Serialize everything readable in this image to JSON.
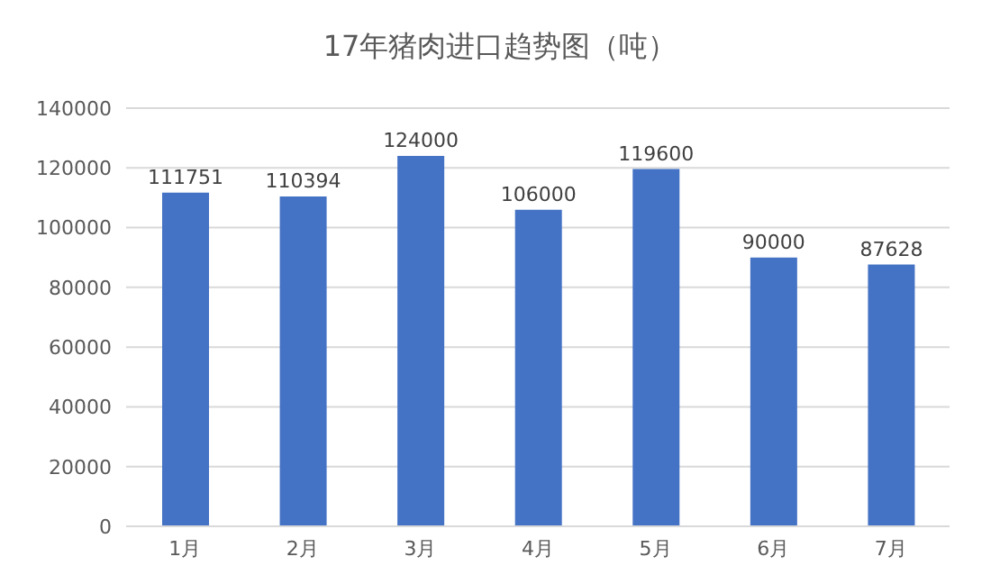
{
  "chart_data": {
    "type": "bar",
    "title": "17年猪肉进口趋势图（吨）",
    "categories": [
      "1月",
      "2月",
      "3月",
      "4月",
      "5月",
      "6月",
      "7月"
    ],
    "values": [
      111751,
      110394,
      124000,
      106000,
      119600,
      90000,
      87628
    ],
    "color": "#4472c4",
    "ylim": [
      0,
      140000
    ],
    "yticks": [
      0,
      20000,
      40000,
      60000,
      80000,
      100000,
      120000,
      140000
    ],
    "grid": "y",
    "data_labels": true
  }
}
